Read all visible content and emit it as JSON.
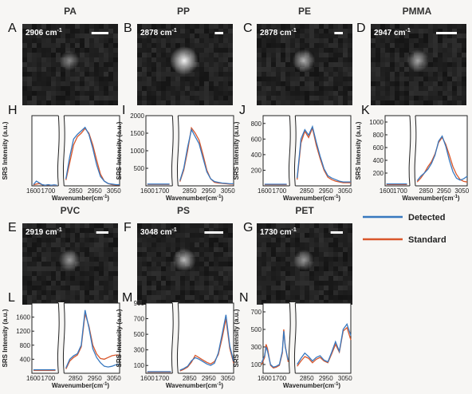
{
  "legend": {
    "placement": "right-middle",
    "entries": [
      {
        "name": "Detected",
        "color": "#3778bf"
      },
      {
        "name": "Standard",
        "color": "#d9572b"
      }
    ]
  },
  "images": [
    {
      "letter": "A",
      "title": "PA",
      "wavenumber": "2906 cm",
      "sup": "-1",
      "brightness": 0.32,
      "scalebar_fraction": 0.18
    },
    {
      "letter": "B",
      "title": "PP",
      "wavenumber": "2878 cm",
      "sup": "-1",
      "brightness": 1.0,
      "scalebar_fraction": 0.09
    },
    {
      "letter": "C",
      "title": "PE",
      "wavenumber": "2878 cm",
      "sup": "-1",
      "brightness": 0.55,
      "scalebar_fraction": 0.09
    },
    {
      "letter": "D",
      "title": "PMMA",
      "wavenumber": "2947 cm",
      "sup": "-1",
      "brightness": 0.5,
      "scalebar_fraction": 0.22
    },
    {
      "letter": "E",
      "title": "PVC",
      "wavenumber": "2919 cm",
      "sup": "-1",
      "brightness": 0.45,
      "scalebar_fraction": 0.13
    },
    {
      "letter": "F",
      "title": "PS",
      "wavenumber": "3048 cm",
      "sup": "-1",
      "brightness": 0.6,
      "scalebar_fraction": 0.2
    },
    {
      "letter": "G",
      "title": "PET",
      "wavenumber": "1730 cm",
      "sup": "-1",
      "brightness": 0.4,
      "scalebar_fraction": 0.13
    }
  ],
  "chart_data": [
    {
      "letter": "H",
      "type": "line",
      "xlabel": "Wavenumber(cm",
      "xlabel_sup": "-1",
      "xlabel_end": ")",
      "ylabel": "SRS Intensity (a.u.)",
      "ylim": [
        0,
        600
      ],
      "yticks": [],
      "xticks_left": [
        "1600",
        "1700"
      ],
      "xticks_right": [
        "2850",
        "2950",
        "3050"
      ],
      "series": [
        {
          "name": "Detected",
          "x": [
            1600,
            1620,
            1640,
            1660,
            1680,
            1700,
            1720,
            1740,
            1760,
            2800,
            2820,
            2840,
            2860,
            2880,
            2900,
            2920,
            2940,
            2960,
            2980,
            3000,
            3020,
            3040,
            3060,
            3080
          ],
          "y": [
            10,
            40,
            25,
            10,
            5,
            10,
            5,
            8,
            5,
            60,
            250,
            400,
            440,
            470,
            500,
            440,
            320,
            180,
            80,
            40,
            20,
            15,
            10,
            10
          ]
        },
        {
          "name": "Standard",
          "x": [
            1600,
            1620,
            1640,
            1660,
            1680,
            1700,
            1720,
            1740,
            1760,
            2800,
            2820,
            2840,
            2860,
            2880,
            2900,
            2920,
            2940,
            2960,
            2980,
            3000,
            3020,
            3040,
            3060,
            3080
          ],
          "y": [
            8,
            15,
            20,
            8,
            5,
            8,
            5,
            5,
            5,
            50,
            200,
            350,
            420,
            450,
            490,
            450,
            350,
            220,
            100,
            40,
            20,
            10,
            8,
            8
          ]
        }
      ]
    },
    {
      "letter": "I",
      "type": "line",
      "xlabel": "Wavenumber(cm",
      "xlabel_sup": "-1",
      "xlabel_end": ")",
      "ylabel": "SRS Intensity (a.u.)",
      "ylim": [
        0,
        2000
      ],
      "yticks": [
        500,
        1000,
        1500,
        2000
      ],
      "xticks_left": [
        "1600",
        "1700"
      ],
      "xticks_right": [
        "2850",
        "2950",
        "3050"
      ],
      "series": [
        {
          "name": "Detected",
          "x": [
            1600,
            1650,
            1700,
            1750,
            2800,
            2820,
            2840,
            2860,
            2880,
            2900,
            2920,
            2940,
            2960,
            2980,
            3000,
            3020,
            3040,
            3060,
            3080
          ],
          "y": [
            50,
            50,
            50,
            50,
            150,
            500,
            1100,
            1600,
            1400,
            1200,
            800,
            400,
            200,
            120,
            100,
            80,
            70,
            60,
            60
          ]
        },
        {
          "name": "Standard",
          "x": [
            1600,
            1650,
            1700,
            1750,
            2800,
            2820,
            2840,
            2860,
            2880,
            2900,
            2920,
            2940,
            2960,
            2980,
            3000,
            3020,
            3040,
            3060,
            3080
          ],
          "y": [
            40,
            40,
            40,
            40,
            120,
            450,
            1000,
            1650,
            1500,
            1300,
            900,
            450,
            200,
            100,
            80,
            70,
            60,
            50,
            50
          ]
        }
      ]
    },
    {
      "letter": "J",
      "type": "line",
      "xlabel": "Wavenumber(cm",
      "xlabel_sup": "-1",
      "xlabel_end": ")",
      "ylabel": "SRS Intensity (a.u.)",
      "ylim": [
        0,
        900
      ],
      "yticks": [
        200,
        400,
        600,
        800
      ],
      "xticks_left": [
        "1600",
        "1700"
      ],
      "xticks_right": [
        "2850",
        "2950",
        "3050"
      ],
      "series": [
        {
          "name": "Detected",
          "x": [
            1600,
            1650,
            1700,
            1750,
            2800,
            2820,
            2840,
            2860,
            2880,
            2900,
            2920,
            2940,
            2960,
            2980,
            3000,
            3020,
            3040,
            3060,
            3080
          ],
          "y": [
            20,
            20,
            20,
            20,
            100,
            600,
            720,
            650,
            760,
            560,
            380,
            220,
            130,
            100,
            80,
            60,
            50,
            50,
            50
          ]
        },
        {
          "name": "Standard",
          "x": [
            1600,
            1650,
            1700,
            1750,
            2800,
            2820,
            2840,
            2860,
            2880,
            2900,
            2920,
            2940,
            2960,
            2980,
            3000,
            3020,
            3040,
            3060,
            3080
          ],
          "y": [
            15,
            15,
            15,
            15,
            80,
            550,
            700,
            620,
            740,
            520,
            350,
            200,
            110,
            80,
            60,
            50,
            40,
            40,
            40
          ]
        }
      ]
    },
    {
      "letter": "K",
      "type": "line",
      "xlabel": "Wavenumber(cm",
      "xlabel_sup": "-1",
      "xlabel_end": ")",
      "ylabel": "SRS Intensity (a.u.)",
      "ylim": [
        0,
        1100
      ],
      "yticks": [
        200,
        400,
        600,
        800,
        1000
      ],
      "xticks_left": [
        "1600",
        "1700"
      ],
      "xticks_right": [
        "2850",
        "2950",
        "3050"
      ],
      "series": [
        {
          "name": "Detected",
          "x": [
            1600,
            1650,
            1700,
            1750,
            2800,
            2820,
            2840,
            2860,
            2880,
            2900,
            2920,
            2940,
            2960,
            2980,
            3000,
            3020,
            3040,
            3060,
            3080
          ],
          "y": [
            30,
            30,
            30,
            30,
            80,
            150,
            200,
            260,
            350,
            480,
            700,
            780,
            620,
            400,
            220,
            120,
            90,
            110,
            150
          ]
        },
        {
          "name": "Standard",
          "x": [
            1600,
            1650,
            1700,
            1750,
            2800,
            2820,
            2840,
            2860,
            2880,
            2900,
            2920,
            2940,
            2960,
            2980,
            3000,
            3020,
            3040,
            3060,
            3080
          ],
          "y": [
            20,
            20,
            20,
            20,
            60,
            120,
            200,
            300,
            380,
            500,
            680,
            760,
            650,
            480,
            300,
            180,
            100,
            70,
            60
          ]
        }
      ]
    },
    {
      "letter": "L",
      "type": "line",
      "xlabel": "Wavenumber(cm",
      "xlabel_sup": "-1",
      "xlabel_end": ")",
      "ylabel": "SRS Intensity (a.u.)",
      "ylim": [
        0,
        2000
      ],
      "yticks": [
        400,
        800,
        1200,
        1600
      ],
      "xticks_left": [
        "1600",
        "1700"
      ],
      "xticks_right": [
        "2850",
        "2950",
        "3050"
      ],
      "series": [
        {
          "name": "Detected",
          "x": [
            1600,
            1650,
            1700,
            1750,
            2800,
            2820,
            2840,
            2860,
            2880,
            2900,
            2920,
            2940,
            2960,
            2980,
            3000,
            3020,
            3040,
            3060,
            3080
          ],
          "y": [
            100,
            100,
            100,
            100,
            150,
            400,
            500,
            560,
            800,
            1800,
            1300,
            700,
            450,
            300,
            200,
            180,
            200,
            240,
            260
          ]
        },
        {
          "name": "Standard",
          "x": [
            1600,
            1650,
            1700,
            1750,
            2800,
            2820,
            2840,
            2860,
            2880,
            2900,
            2920,
            2940,
            2960,
            2980,
            3000,
            3020,
            3040,
            3060,
            3080
          ],
          "y": [
            80,
            80,
            80,
            80,
            120,
            350,
            450,
            520,
            750,
            1700,
            1350,
            800,
            550,
            420,
            400,
            450,
            500,
            520,
            520
          ]
        }
      ]
    },
    {
      "letter": "M",
      "type": "line",
      "xlabel": "Wavenumber(cm",
      "xlabel_sup": "-1",
      "xlabel_end": ")",
      "ylabel": "SRS Intensity (a.u.)",
      "ylim": [
        0,
        900
      ],
      "yticks": [
        100,
        300,
        500,
        700,
        900
      ],
      "xticks_left": [
        "1600",
        "1700",
        ""
      ],
      "xticks_right": [
        "2850",
        "2950",
        "3050"
      ],
      "series": [
        {
          "name": "Detected",
          "x": [
            1600,
            1620,
            1640,
            1660,
            1680,
            1700,
            1720,
            1740,
            1760,
            2800,
            2820,
            2840,
            2860,
            2880,
            2900,
            2920,
            2940,
            2960,
            2980,
            3000,
            3020,
            3040,
            3060,
            3080
          ],
          "y": [
            20,
            20,
            20,
            20,
            20,
            20,
            20,
            20,
            20,
            40,
            60,
            90,
            160,
            200,
            180,
            150,
            120,
            100,
            130,
            260,
            500,
            750,
            350,
            150
          ]
        },
        {
          "name": "Standard",
          "x": [
            1600,
            1620,
            1640,
            1660,
            1680,
            1700,
            1720,
            1740,
            1760,
            2800,
            2820,
            2840,
            2860,
            2880,
            2900,
            2920,
            2940,
            2960,
            2980,
            3000,
            3020,
            3040,
            3060,
            3080
          ],
          "y": [
            15,
            15,
            15,
            15,
            15,
            15,
            15,
            15,
            15,
            30,
            50,
            80,
            140,
            230,
            200,
            170,
            140,
            120,
            150,
            240,
            450,
            700,
            320,
            130
          ]
        }
      ]
    },
    {
      "letter": "N",
      "type": "line",
      "xlabel": "Wavenumber(cm",
      "xlabel_sup": "-1",
      "xlabel_end": ")",
      "ylabel": "SRS Intensity (a.u.)",
      "ylim": [
        0,
        800
      ],
      "yticks": [
        100,
        300,
        500,
        700
      ],
      "xticks_left": [
        "1600",
        "1700"
      ],
      "xticks_right": [
        "2850",
        "2950",
        "3050"
      ],
      "series": [
        {
          "name": "Detected",
          "x": [
            1580,
            1600,
            1610,
            1620,
            1640,
            1660,
            1680,
            1700,
            1720,
            1730,
            1740,
            1760,
            2800,
            2820,
            2840,
            2860,
            2880,
            2900,
            2920,
            2940,
            2960,
            2980,
            3000,
            3020,
            3040,
            3060,
            3080
          ],
          "y": [
            120,
            200,
            300,
            250,
            100,
            70,
            80,
            100,
            250,
            480,
            300,
            150,
            100,
            170,
            230,
            190,
            140,
            180,
            200,
            150,
            130,
            240,
            360,
            250,
            500,
            560,
            430
          ]
        },
        {
          "name": "Standard",
          "x": [
            1580,
            1600,
            1610,
            1620,
            1640,
            1660,
            1680,
            1700,
            1720,
            1730,
            1740,
            1760,
            2800,
            2820,
            2840,
            2860,
            2880,
            2900,
            2920,
            2940,
            2960,
            2980,
            3000,
            3020,
            3040,
            3060,
            3080
          ],
          "y": [
            100,
            180,
            330,
            280,
            90,
            60,
            70,
            90,
            230,
            500,
            310,
            130,
            80,
            140,
            190,
            170,
            120,
            160,
            180,
            140,
            120,
            220,
            330,
            240,
            480,
            520,
            380
          ]
        }
      ]
    }
  ]
}
